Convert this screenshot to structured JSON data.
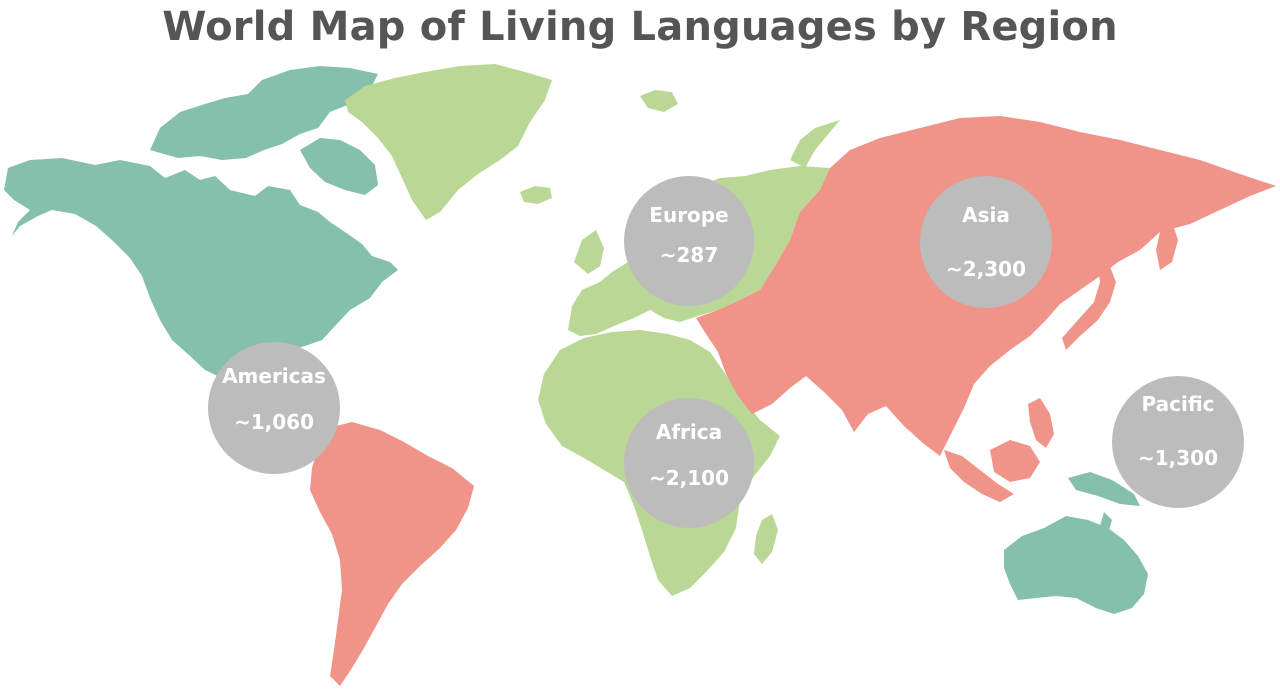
{
  "title": "World Map of Living Languages by Region",
  "colors": {
    "americas_north": "#84c0ac",
    "americas_south": "#f09388",
    "europe_africa": "#bad795",
    "asia": "#f09388",
    "pacific": "#84c0ac",
    "bubble": "#bcbcbc",
    "bubble_text": "#ffffff",
    "title_text": "#555555"
  },
  "regions": [
    {
      "id": "europe",
      "name": "Europe",
      "count": "~287"
    },
    {
      "id": "asia",
      "name": "Asia",
      "count": "~2,300"
    },
    {
      "id": "americas",
      "name": "Americas",
      "count": "~1,060"
    },
    {
      "id": "africa",
      "name": "Africa",
      "count": "~2,100"
    },
    {
      "id": "pacific",
      "name": "Pacific",
      "count": "~1,300"
    }
  ]
}
